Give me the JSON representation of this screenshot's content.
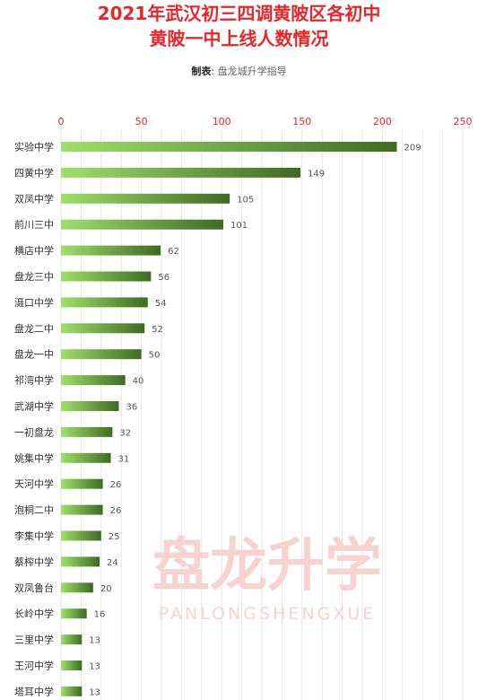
{
  "header": {
    "title_line1": "2021年武汉初三四调黄陂区各初中",
    "title_line2": "黄陂一中上线人数情况",
    "credit_label": "制表",
    "credit_sep": ":",
    "credit_value": "盘龙城升学指导"
  },
  "watermark": {
    "text": "盘龙升学",
    "subtext": "PANLONGSHENGXUE",
    "color": "#f7d3cf"
  },
  "colors": {
    "title": "#e8262a",
    "bar_light": "#9ee06a",
    "bar_dark": "#3e6b22",
    "tick_text": "#e8262a",
    "grid": "#e3e3e3"
  },
  "chart_data": {
    "type": "bar",
    "orientation": "horizontal",
    "categories": [
      "实验中学",
      "四黄中学",
      "双凤中学",
      "前川三中",
      "横店中学",
      "盘龙三中",
      "滠口中学",
      "盘龙二中",
      "盘龙一中",
      "祁湾中学",
      "武湖中学",
      "一初盘龙",
      "姚集中学",
      "天河中学",
      "泡桐二中",
      "李集中学",
      "蔡榨中学",
      "双凤鲁台",
      "长岭中学",
      "三里中学",
      "王河中学",
      "塔耳中学"
    ],
    "values": [
      209,
      149,
      105,
      101,
      62,
      56,
      54,
      52,
      50,
      40,
      36,
      32,
      31,
      26,
      26,
      25,
      24,
      20,
      16,
      13,
      13,
      13
    ],
    "xlim": [
      0,
      250
    ],
    "xticks": [
      0,
      50,
      100,
      150,
      200,
      250
    ],
    "tick_position": "top",
    "grid": true,
    "data_labels": true
  }
}
